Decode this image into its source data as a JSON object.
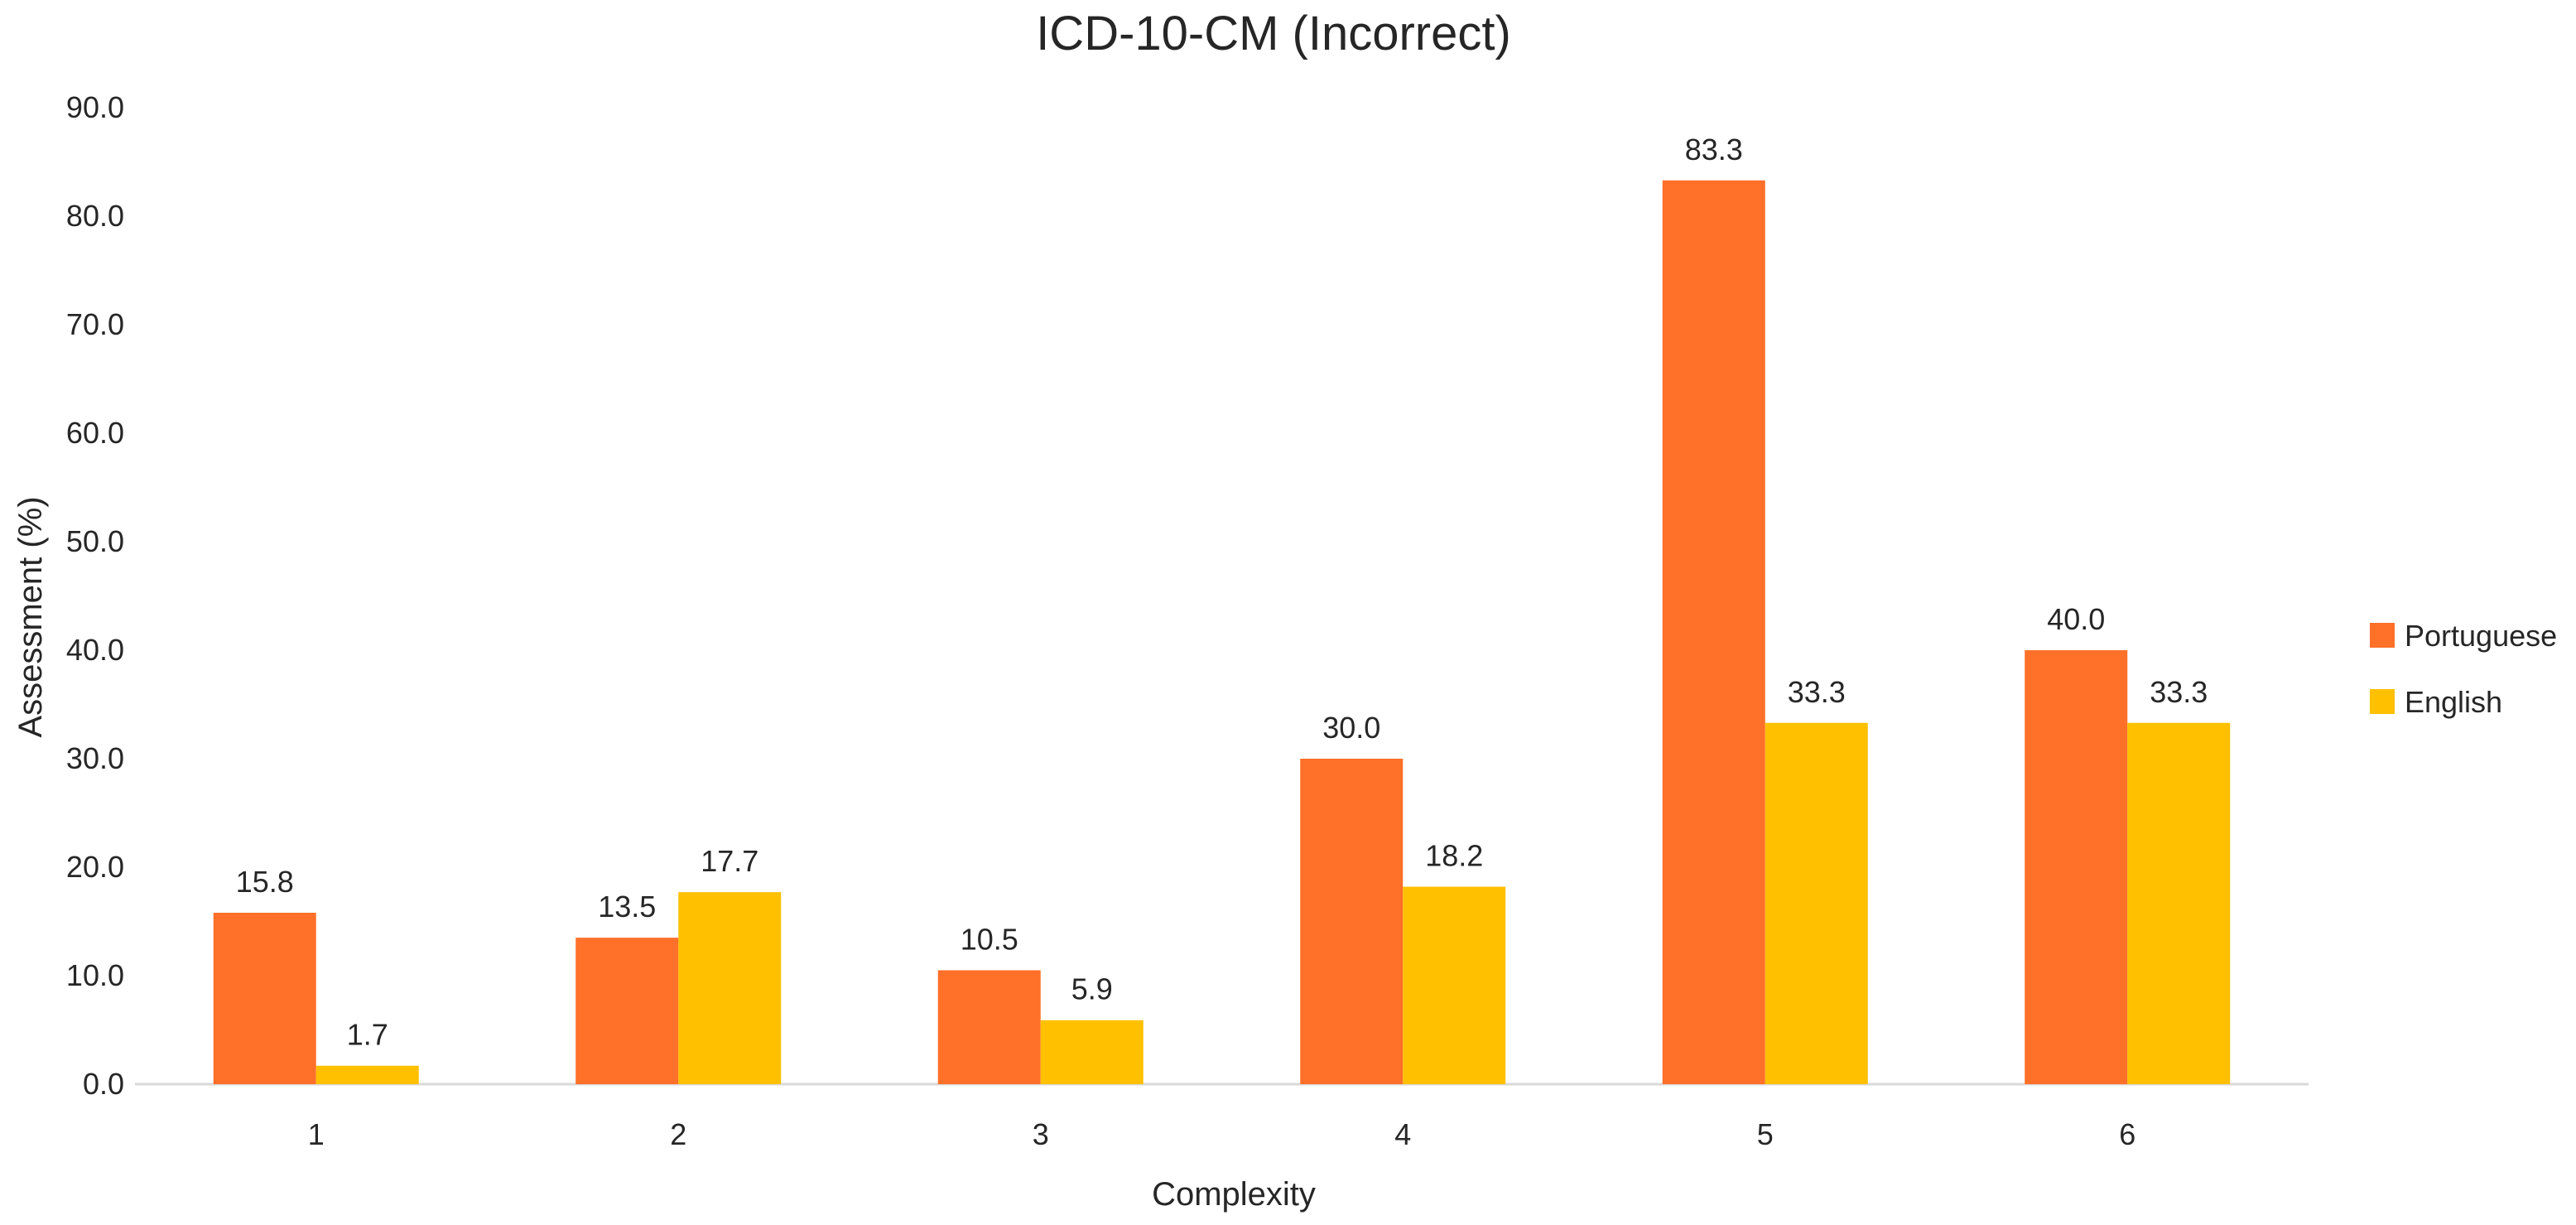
{
  "chart_data": {
    "type": "bar",
    "title": "ICD-10-CM (Incorrect)",
    "xlabel": "Complexity",
    "ylabel": "Assessment (%)",
    "categories": [
      "1",
      "2",
      "3",
      "4",
      "5",
      "6"
    ],
    "series": [
      {
        "name": "Portuguese",
        "color": "#FF7029",
        "values": [
          15.8,
          13.5,
          10.5,
          30.0,
          83.3,
          40.0
        ],
        "labels": [
          "15.8",
          "13.5",
          "10.5",
          "30.0",
          "83.3",
          "40.0"
        ]
      },
      {
        "name": "English",
        "color": "#FFC000",
        "values": [
          1.7,
          17.7,
          5.9,
          18.2,
          33.3,
          33.3
        ],
        "labels": [
          "1.7",
          "17.7",
          "5.9",
          "18.2",
          "33.3",
          "33.3"
        ]
      }
    ],
    "ylim": [
      0,
      90
    ],
    "yticks": [
      "0.0",
      "10.0",
      "20.0",
      "30.0",
      "40.0",
      "50.0",
      "60.0",
      "70.0",
      "80.0",
      "90.0"
    ],
    "grid": false,
    "legend": "right"
  }
}
